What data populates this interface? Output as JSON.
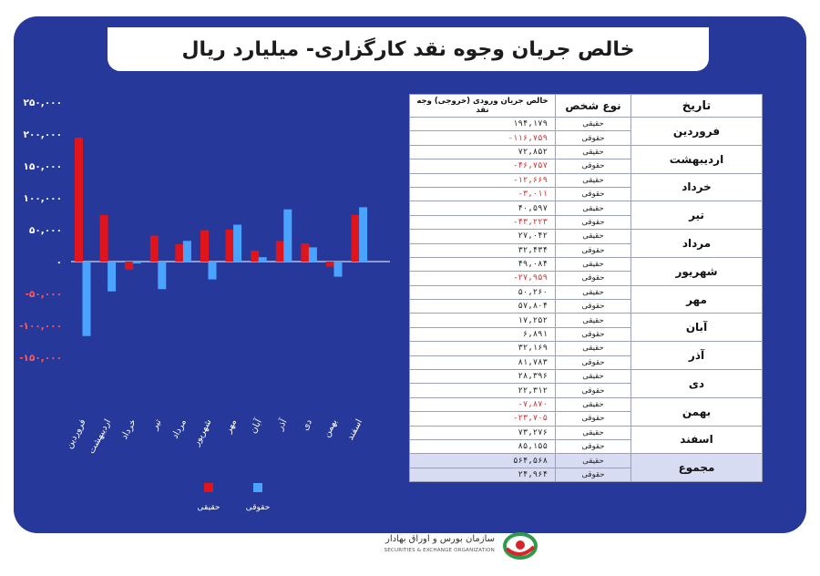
{
  "title": "خالص جریان وجوه نقد کارگزاری- میلیارد ریال",
  "colors": {
    "haghighi": "#e0151b",
    "hoghoghi": "#4aa3ff",
    "background": "#26389a",
    "negative_text": "#d32f2f"
  },
  "chart_data": {
    "type": "bar",
    "title": "",
    "xlabel": "",
    "ylabel": "",
    "ylim": [
      -150000,
      250000
    ],
    "y_ticks": [
      "۲۵۰,۰۰۰",
      "۲۰۰,۰۰۰",
      "۱۵۰,۰۰۰",
      "۱۰۰,۰۰۰",
      "۵۰,۰۰۰",
      "۰",
      "-۵۰,۰۰۰",
      "-۱۰۰,۰۰۰",
      "-۱۵۰,۰۰۰"
    ],
    "y_tick_values": [
      250000,
      200000,
      150000,
      100000,
      50000,
      0,
      -50000,
      -100000,
      -150000
    ],
    "grid": false,
    "legend_position": "bottom",
    "categories": [
      "فروردین",
      "اردیبهشت",
      "خرداد",
      "تیر",
      "مرداد",
      "شهریور",
      "مهر",
      "آبان",
      "آذر",
      "دی",
      "بهمن",
      "اسفند"
    ],
    "series": [
      {
        "name": "حقیقی",
        "color": "#e0151b",
        "values": [
          194179,
          72852,
          -12669,
          40597,
          27042,
          49084,
          50260,
          17252,
          32169,
          28396,
          -7870,
          73276
        ]
      },
      {
        "name": "حقوقی",
        "color": "#4aa3ff",
        "values": [
          -116759,
          -46757,
          -3011,
          -43223,
          32434,
          -27959,
          57804,
          6891,
          81783,
          22312,
          -23705,
          85155
        ]
      }
    ]
  },
  "table": {
    "headers": {
      "date": "تاریخ",
      "type": "نوع شخص",
      "value": "خالص جریان ورودی (خروجی) وجه نقد"
    },
    "type_labels": {
      "real": "حقیقی",
      "legal": "حقوقی"
    },
    "rows": [
      {
        "month": "فروردین",
        "real": "۱۹۴,۱۷۹",
        "legal": "-۱۱۶,۷۵۹"
      },
      {
        "month": "اردیبهشت",
        "real": "۷۲,۸۵۲",
        "legal": "-۴۶,۷۵۷"
      },
      {
        "month": "خرداد",
        "real": "-۱۲,۶۶۹",
        "legal": "-۳,۰۱۱"
      },
      {
        "month": "تیر",
        "real": "۴۰,۵۹۷",
        "legal": "-۴۳,۲۲۳"
      },
      {
        "month": "مرداد",
        "real": "۲۷,۰۴۲",
        "legal": "۳۲,۴۳۴"
      },
      {
        "month": "شهریور",
        "real": "۴۹,۰۸۴",
        "legal": "-۲۷,۹۵۹"
      },
      {
        "month": "مهر",
        "real": "۵۰,۲۶۰",
        "legal": "۵۷,۸۰۴"
      },
      {
        "month": "آبان",
        "real": "۱۷,۲۵۲",
        "legal": "۶,۸۹۱"
      },
      {
        "month": "آذر",
        "real": "۳۲,۱۶۹",
        "legal": "۸۱,۷۸۳"
      },
      {
        "month": "دی",
        "real": "۲۸,۳۹۶",
        "legal": "۲۲,۳۱۲"
      },
      {
        "month": "بهمن",
        "real": "-۷,۸۷۰",
        "legal": "-۲۳,۷۰۵"
      },
      {
        "month": "اسفند",
        "real": "۷۳,۲۷۶",
        "legal": "۸۵,۱۵۵"
      }
    ],
    "total": {
      "label": "مجموع",
      "real": "۵۶۴,۵۶۸",
      "legal": "۲۴,۹۶۴"
    }
  },
  "logo": {
    "name_fa": "سازمان بورس و اوراق بهادار",
    "name_en": "SECURITIES & EXCHANGE ORGANIZATION"
  }
}
